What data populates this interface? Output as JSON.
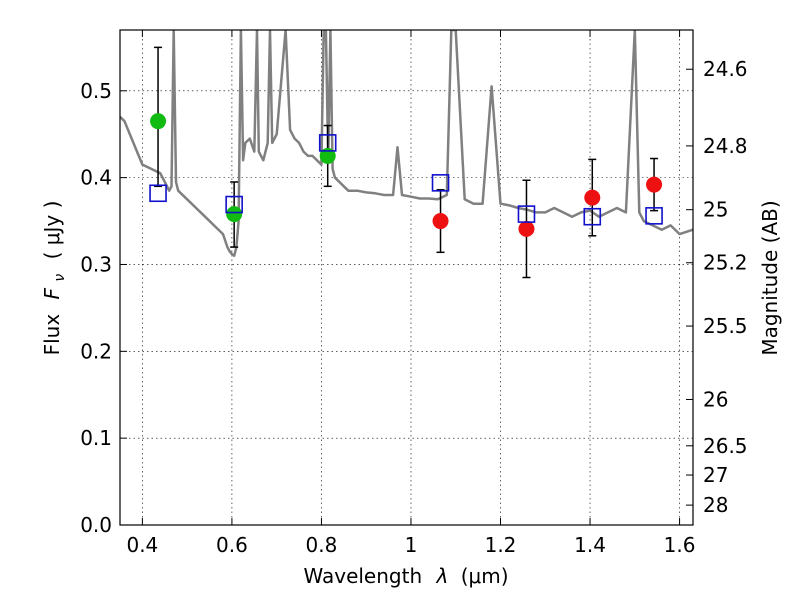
{
  "chart_data": {
    "type": "scatter",
    "xlabel_prefix": "Wavelength",
    "xlabel_symbol": "λ",
    "xlabel_unit": "(μm)",
    "ylabel_prefix": "Flux",
    "ylabel_symbol": "F",
    "ylabel_subscript": "ν",
    "ylabel_unit": "( μJy )",
    "y2label": "Magnitude (AB)",
    "xlim": [
      0.35,
      1.63
    ],
    "ylim": [
      0.0,
      0.57
    ],
    "grid": true,
    "x_ticks": [
      "0.4",
      "0.6",
      "0.8",
      "1",
      "1.2",
      "1.4",
      "1.6"
    ],
    "y_ticks": [
      "0.0",
      "0.1",
      "0.2",
      "0.3",
      "0.4",
      "0.5"
    ],
    "y2_ticks": [
      "24.6",
      "24.8",
      "25",
      "25.2",
      "25.5",
      "26",
      "26.5",
      "27",
      "28"
    ],
    "colors": {
      "model": "#808080",
      "green": "#11bb11",
      "red": "#ee1111",
      "square": "#1111cc",
      "error": "#000000"
    },
    "series": [
      {
        "marker": "circle",
        "color": "green",
        "x": [
          0.435,
          0.605,
          0.814
        ],
        "y": [
          0.465,
          0.358,
          0.425
        ],
        "yerr_low": [
          0.075,
          0.038,
          0.035
        ],
        "yerr_high": [
          0.085,
          0.037,
          0.035
        ]
      },
      {
        "marker": "circle",
        "color": "red",
        "x": [
          1.066,
          1.258,
          1.405,
          1.543
        ],
        "y": [
          0.35,
          0.341,
          0.377,
          0.392
        ],
        "yerr_low": [
          0.036,
          0.056,
          0.044,
          0.03
        ],
        "yerr_high": [
          0.036,
          0.056,
          0.044,
          0.03
        ]
      },
      {
        "marker": "square",
        "color": "square",
        "x": [
          0.435,
          0.605,
          0.814,
          1.066,
          1.258,
          1.405,
          1.543
        ],
        "y": [
          0.382,
          0.369,
          0.44,
          0.394,
          0.358,
          0.355,
          0.356
        ]
      },
      {
        "marker": "line",
        "color": "model",
        "x": [
          0.35,
          0.36,
          0.38,
          0.4,
          0.42,
          0.44,
          0.45,
          0.46,
          0.465,
          0.47,
          0.475,
          0.48,
          0.5,
          0.52,
          0.54,
          0.56,
          0.58,
          0.59,
          0.595,
          0.6,
          0.605,
          0.61,
          0.615,
          0.62,
          0.625,
          0.63,
          0.64,
          0.65,
          0.656,
          0.66,
          0.67,
          0.68,
          0.685,
          0.69,
          0.7,
          0.72,
          0.73,
          0.74,
          0.75,
          0.76,
          0.77,
          0.78,
          0.79,
          0.8,
          0.805,
          0.81,
          0.815,
          0.82,
          0.825,
          0.83,
          0.84,
          0.85,
          0.86,
          0.88,
          0.9,
          0.92,
          0.94,
          0.96,
          0.97,
          0.98,
          1.0,
          1.02,
          1.04,
          1.06,
          1.08,
          1.09,
          1.1,
          1.12,
          1.14,
          1.16,
          1.18,
          1.2,
          1.22,
          1.24,
          1.26,
          1.28,
          1.3,
          1.32,
          1.34,
          1.36,
          1.38,
          1.4,
          1.42,
          1.44,
          1.46,
          1.48,
          1.5,
          1.51,
          1.52,
          1.54,
          1.56,
          1.58,
          1.6,
          1.63
        ],
        "y": [
          0.47,
          0.465,
          0.44,
          0.415,
          0.41,
          0.405,
          0.395,
          0.385,
          0.39,
          0.57,
          0.395,
          0.385,
          0.375,
          0.365,
          0.355,
          0.345,
          0.335,
          0.32,
          0.315,
          0.312,
          0.31,
          0.32,
          0.35,
          0.57,
          0.42,
          0.44,
          0.445,
          0.43,
          0.57,
          0.43,
          0.42,
          0.44,
          0.57,
          0.44,
          0.45,
          0.57,
          0.455,
          0.445,
          0.44,
          0.43,
          0.425,
          0.425,
          0.42,
          0.415,
          0.57,
          0.57,
          0.42,
          0.57,
          0.41,
          0.4,
          0.395,
          0.39,
          0.385,
          0.385,
          0.383,
          0.382,
          0.38,
          0.38,
          0.435,
          0.38,
          0.378,
          0.376,
          0.376,
          0.375,
          0.38,
          0.57,
          0.57,
          0.375,
          0.37,
          0.37,
          0.505,
          0.37,
          0.368,
          0.365,
          0.363,
          0.36,
          0.36,
          0.365,
          0.36,
          0.355,
          0.36,
          0.362,
          0.355,
          0.36,
          0.365,
          0.36,
          0.57,
          0.36,
          0.35,
          0.345,
          0.34,
          0.345,
          0.335,
          0.34
        ]
      }
    ]
  }
}
